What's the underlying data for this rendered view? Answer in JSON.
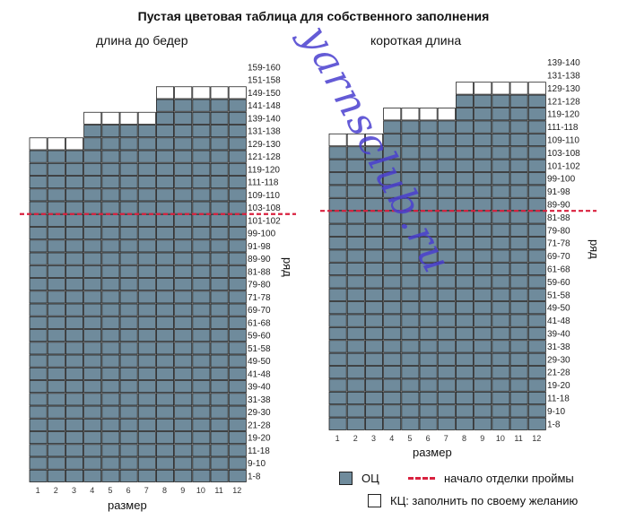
{
  "title": "Пустая цветовая таблица для собственного заполнения",
  "left_chart": {
    "subtitle": "длина до бедер",
    "row_labels": [
      "159-160",
      "151-158",
      "149-150",
      "141-148",
      "139-140",
      "131-138",
      "129-130",
      "121-128",
      "119-120",
      "111-118",
      "109-110",
      "103-108",
      "101-102",
      "99-100",
      "91-98",
      "89-90",
      "81-88",
      "79-80",
      "71-78",
      "69-70",
      "61-68",
      "59-60",
      "51-58",
      "49-50",
      "41-48",
      "39-40",
      "31-38",
      "29-30",
      "21-28",
      "19-20",
      "11-18",
      "9-10",
      "1-8"
    ],
    "size_labels": [
      "1",
      "2",
      "3",
      "4",
      "5",
      "6",
      "7",
      "8",
      "9",
      "10",
      "11",
      "12"
    ],
    "column_heights": [
      27,
      27,
      27,
      29,
      29,
      29,
      29,
      31,
      31,
      31,
      31,
      31
    ],
    "armhole_start_after_row_label": "101-102",
    "x_label": "размер",
    "y_label": "ряд"
  },
  "right_chart": {
    "subtitle": "короткая длина",
    "row_labels": [
      "139-140",
      "131-138",
      "129-130",
      "121-128",
      "119-120",
      "111-118",
      "109-110",
      "103-108",
      "101-102",
      "99-100",
      "91-98",
      "89-90",
      "81-88",
      "79-80",
      "71-78",
      "69-70",
      "61-68",
      "59-60",
      "51-58",
      "49-50",
      "41-48",
      "39-40",
      "31-38",
      "29-30",
      "21-28",
      "19-20",
      "11-18",
      "9-10",
      "1-8"
    ],
    "size_labels": [
      "1",
      "2",
      "3",
      "4",
      "5",
      "6",
      "7",
      "8",
      "9",
      "10",
      "11",
      "12"
    ],
    "column_heights": [
      23,
      23,
      23,
      25,
      25,
      25,
      25,
      27,
      27,
      27,
      27,
      27
    ],
    "armhole_start_after_row_label": "81-88",
    "x_label": "размер",
    "y_label": "ряд"
  },
  "legend": {
    "main_color_label": "ОЦ",
    "armhole_label": "начало отделки проймы",
    "contrast_color_label": "КЦ: заполнить по своему желанию"
  },
  "watermark": "yarnsclub.ru",
  "colors": {
    "main": "#6f8b9c",
    "contrast": "#ffffff",
    "border": "#222222",
    "armhole_line": "#d9213f"
  }
}
